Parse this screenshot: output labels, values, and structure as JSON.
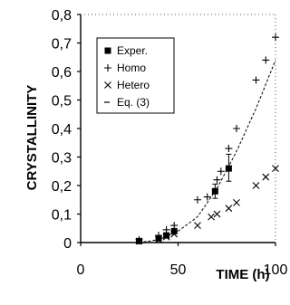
{
  "chart_data": {
    "type": "scatter",
    "title": "",
    "xlabel": "TIME (h)",
    "ylabel": "CRYSTALLINITY",
    "xlim": [
      0,
      100
    ],
    "ylim": [
      0,
      0.8
    ],
    "x_ticks": [
      "0",
      "50",
      "100"
    ],
    "y_ticks": [
      "0",
      "0,1",
      "0,2",
      "0,3",
      "0,4",
      "0,5",
      "0,6",
      "0,7",
      "0,8"
    ],
    "grid": false,
    "legend_position": "top-left",
    "legend": [
      "Exper.",
      "Homo",
      "Hetero",
      "Eq. (3)"
    ],
    "series": [
      {
        "name": "Exper.",
        "marker": "filled-square",
        "points": [
          {
            "x": 30,
            "y": 0.005
          },
          {
            "x": 40,
            "y": 0.015
          },
          {
            "x": 44,
            "y": 0.025
          },
          {
            "x": 48,
            "y": 0.04
          },
          {
            "x": 69,
            "y": 0.18
          },
          {
            "x": 76,
            "y": 0.26
          }
        ],
        "error_bars": [
          {
            "x": 69,
            "low": 0.155,
            "high": 0.205
          },
          {
            "x": 76,
            "low": 0.215,
            "high": 0.31
          }
        ]
      },
      {
        "name": "Homo",
        "marker": "plus",
        "points": [
          {
            "x": 30,
            "y": 0.01
          },
          {
            "x": 40,
            "y": 0.025
          },
          {
            "x": 44,
            "y": 0.045
          },
          {
            "x": 48,
            "y": 0.06
          },
          {
            "x": 60,
            "y": 0.15
          },
          {
            "x": 65,
            "y": 0.16
          },
          {
            "x": 70,
            "y": 0.22
          },
          {
            "x": 72,
            "y": 0.25
          },
          {
            "x": 76,
            "y": 0.33
          },
          {
            "x": 80,
            "y": 0.4
          },
          {
            "x": 90,
            "y": 0.57
          },
          {
            "x": 95,
            "y": 0.64
          },
          {
            "x": 100,
            "y": 0.72
          }
        ]
      },
      {
        "name": "Hetero",
        "marker": "cross",
        "points": [
          {
            "x": 30,
            "y": 0.005
          },
          {
            "x": 40,
            "y": 0.01
          },
          {
            "x": 44,
            "y": 0.02
          },
          {
            "x": 48,
            "y": 0.03
          },
          {
            "x": 60,
            "y": 0.06
          },
          {
            "x": 67,
            "y": 0.09
          },
          {
            "x": 70,
            "y": 0.1
          },
          {
            "x": 76,
            "y": 0.12
          },
          {
            "x": 80,
            "y": 0.14
          },
          {
            "x": 90,
            "y": 0.2
          },
          {
            "x": 95,
            "y": 0.23
          },
          {
            "x": 100,
            "y": 0.26
          }
        ]
      },
      {
        "name": "Eq. (3)",
        "marker": "dashed-line",
        "points": [
          {
            "x": 30,
            "y": 0.0
          },
          {
            "x": 40,
            "y": 0.01
          },
          {
            "x": 50,
            "y": 0.04
          },
          {
            "x": 60,
            "y": 0.09
          },
          {
            "x": 70,
            "y": 0.19
          },
          {
            "x": 80,
            "y": 0.32
          },
          {
            "x": 90,
            "y": 0.47
          },
          {
            "x": 100,
            "y": 0.64
          }
        ]
      }
    ]
  }
}
